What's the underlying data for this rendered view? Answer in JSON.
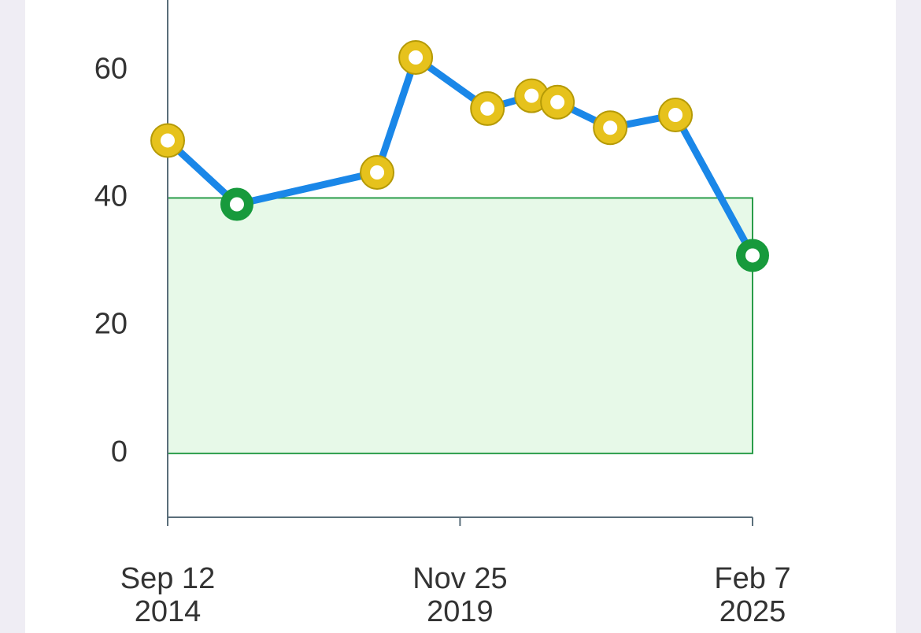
{
  "chart_data": {
    "type": "line",
    "x": [
      "2014-09-12",
      "2015-12-06",
      "2018-06-04",
      "2019-02-10",
      "2020-05-21",
      "2021-03-04",
      "2021-08-19",
      "2022-07-28",
      "2023-09-25",
      "2025-02-07"
    ],
    "series": [
      {
        "color": "#1a87e8",
        "values": [
          49,
          39,
          44,
          62,
          54,
          56,
          55,
          51,
          53,
          31
        ]
      }
    ],
    "normal_range": [
      0,
      40
    ],
    "in_range_color": "#179a3c",
    "out_of_range_color": "#e6c21c",
    "xlim": [
      "2014-09-12",
      "2025-02-07"
    ],
    "xticks": [
      {
        "value": "2014-09-12",
        "label": [
          "Sep 12",
          "2014"
        ]
      },
      {
        "value": "2019-11-25",
        "label": [
          "Nov 25",
          "2019"
        ]
      },
      {
        "value": "2025-02-07",
        "label": [
          "Feb 7",
          "2025"
        ]
      }
    ],
    "ylim": [
      -10,
      71
    ],
    "yticks": [
      0,
      20,
      40,
      60
    ]
  }
}
